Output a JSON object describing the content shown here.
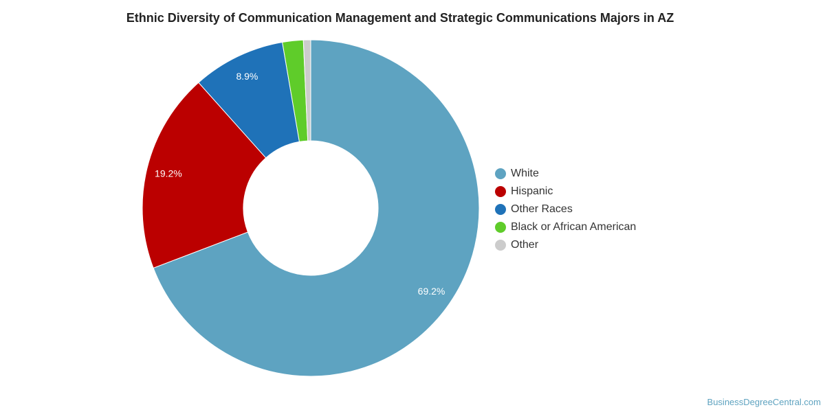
{
  "chart_data": {
    "type": "pie",
    "subtype": "donut",
    "title": "Ethnic Diversity of Communication Management and Strategic Communications Majors in AZ",
    "legend_position": "right",
    "slices": [
      {
        "name": "White",
        "value": 69.2,
        "label": "69.2%",
        "color": "#5ea3c1"
      },
      {
        "name": "Hispanic",
        "value": 19.2,
        "label": "19.2%",
        "color": "#bb0000"
      },
      {
        "name": "Other Races",
        "value": 8.9,
        "label": "8.9%",
        "color": "#1f72b8"
      },
      {
        "name": "Black or African American",
        "value": 2.0,
        "label": "",
        "color": "#5fcc2a"
      },
      {
        "name": "Other",
        "value": 0.7,
        "label": "",
        "color": "#cccccc"
      }
    ]
  },
  "footer": {
    "credit": "BusinessDegreeCentral.com"
  }
}
